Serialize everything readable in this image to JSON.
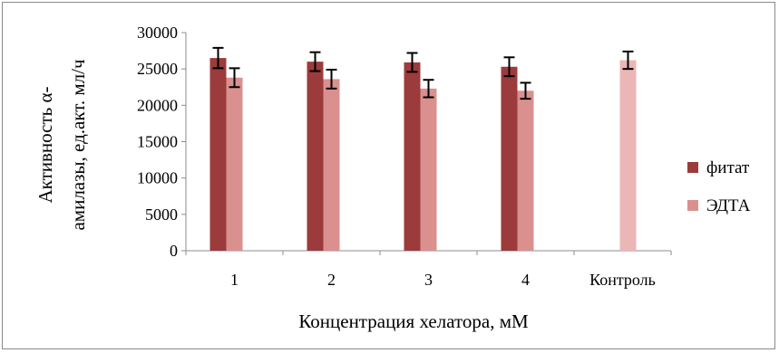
{
  "chart_data": {
    "type": "bar",
    "title": "",
    "xlabel": "Концентрация хелатора, мМ",
    "ylabel_line1": "Активность α-",
    "ylabel_line2": "амилазы, ед.акт. мл/ч",
    "ylim": [
      0,
      30000
    ],
    "yticks": [
      0,
      5000,
      10000,
      15000,
      20000,
      25000,
      30000
    ],
    "categories": [
      "1",
      "2",
      "3",
      "4",
      "Контроль"
    ],
    "grid": false,
    "legend_position": "right",
    "series": [
      {
        "name": "фитат",
        "color": "#9b3b3b",
        "values": [
          26500,
          26000,
          25900,
          25300,
          null
        ],
        "errors": [
          1400,
          1300,
          1300,
          1300,
          null
        ]
      },
      {
        "name": "ЭДТА",
        "color": "#d9908f",
        "values": [
          23800,
          23600,
          22300,
          22000,
          null
        ],
        "errors": [
          1300,
          1300,
          1200,
          1100,
          null
        ]
      },
      {
        "name": "",
        "color": "#ebb7b6",
        "values": [
          null,
          null,
          null,
          null,
          26200
        ],
        "errors": [
          null,
          null,
          null,
          null,
          1200
        ]
      }
    ]
  }
}
